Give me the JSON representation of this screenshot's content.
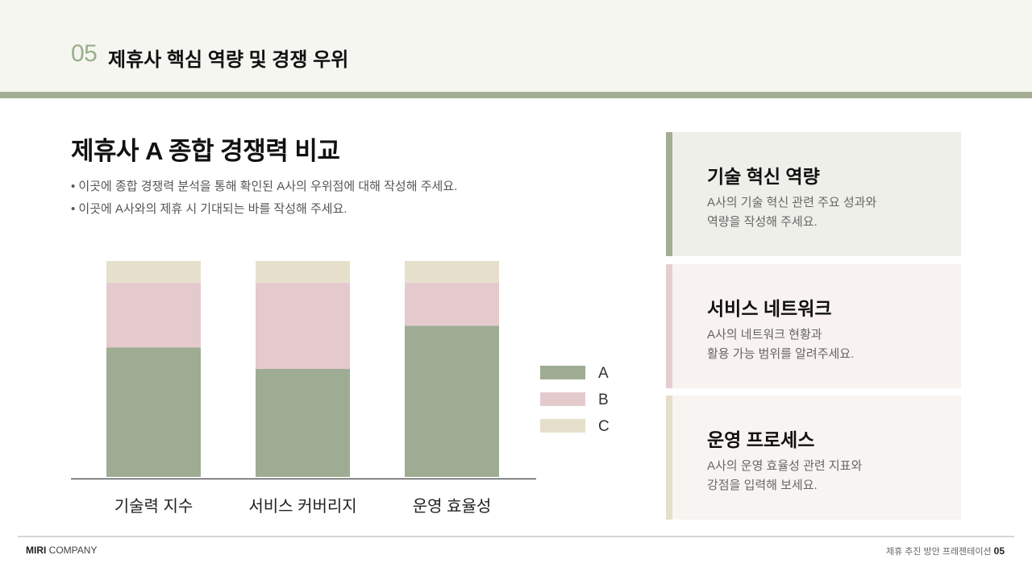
{
  "header": {
    "section_number": "05",
    "section_title": "제휴사 핵심 역량 및 경쟁 우위"
  },
  "main": {
    "title": "제휴사 A 종합 경쟁력 비교",
    "bullets": [
      "• 이곳에 종합 경쟁력 분석을 통해 확인된 A사의 우위점에 대해 작성해 주세요.",
      "• 이곳에 A사와의 제휴 시 기대되는 바를 작성해 주세요."
    ]
  },
  "chart_data": {
    "type": "bar",
    "stacked": true,
    "categories": [
      "기술력 지수",
      "서비스 커버리지",
      "운영 효율성"
    ],
    "series": [
      {
        "name": "A",
        "values": [
          60,
          50,
          70
        ],
        "color": "#9eac93"
      },
      {
        "name": "B",
        "values": [
          30,
          40,
          20
        ],
        "color": "#e4cacd"
      },
      {
        "name": "C",
        "values": [
          10,
          10,
          10
        ],
        "color": "#e6dfcb"
      }
    ],
    "ylim": [
      0,
      100
    ],
    "legend": "right",
    "grid": false
  },
  "cards": [
    {
      "title": "기술 혁신 역량",
      "body": [
        "A사의 기술 혁신 관련 주요 성과와",
        "역량을 작성해 주세요."
      ],
      "bg": "#efefe9",
      "stripe": "#a3ad92"
    },
    {
      "title": "서비스 네트워크",
      "body": [
        "A사의 네트워크 현황과",
        "활용 가능 범위를 알려주세요."
      ],
      "bg": "#f8f2f1",
      "stripe": "#e8cdd0"
    },
    {
      "title": "운영 프로세스",
      "body": [
        "A사의 운영 효율성 관련 지표와",
        "강점을 입력해 보세요."
      ],
      "bg": "#f8f4f2",
      "stripe": "#e6dfcb"
    }
  ],
  "footer": {
    "brand_bold": "MIRI",
    "brand_rest": " COMPANY",
    "doc_title": "제휴 추진 방안 프레젠테이션",
    "page": "05"
  }
}
